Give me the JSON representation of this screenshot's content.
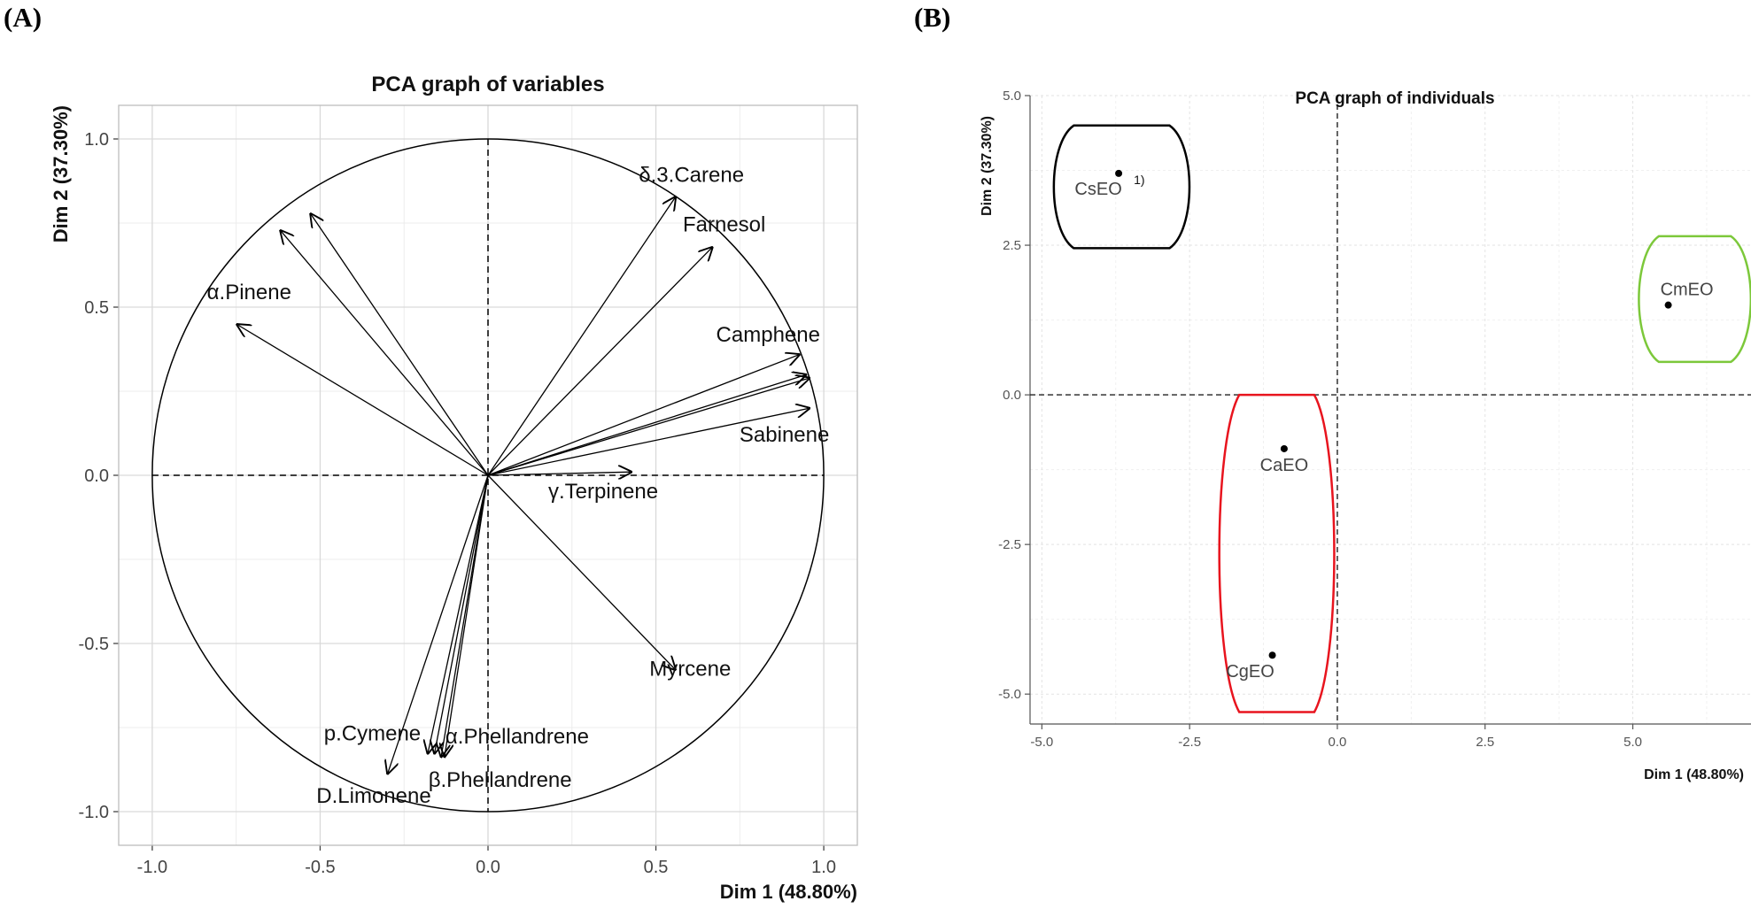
{
  "panel_labels": {
    "a": "(A)",
    "b": "(B)"
  },
  "chart_data": [
    {
      "type": "scatter",
      "subtype": "pca-variables-correlation-circle",
      "title": "PCA graph of variables",
      "xlabel": "Dim 1 (48.80%)",
      "ylabel": "Dim 2 (37.30%)",
      "xlim": [
        -1.1,
        1.1
      ],
      "ylim": [
        -1.1,
        1.1
      ],
      "xticks": [
        -1.0,
        -0.5,
        0.0,
        0.5,
        1.0
      ],
      "yticks": [
        -1.0,
        -0.5,
        0.0,
        0.5,
        1.0
      ],
      "x_tick_labels": [
        "-1.0",
        "-0.5",
        "0.0",
        "0.5",
        "1.0"
      ],
      "y_tick_labels": [
        "-1.0",
        "-0.5",
        "0.0",
        "0.5",
        "1.0"
      ],
      "grid": true,
      "unit_circle": true,
      "variables": [
        {
          "name": "δ.3.Carene",
          "x": 0.56,
          "y": 0.83
        },
        {
          "name": "Farnesol",
          "x": 0.67,
          "y": 0.68
        },
        {
          "name": "Camphene",
          "x": 0.93,
          "y": 0.36
        },
        {
          "name": "",
          "x": 0.95,
          "y": 0.3
        },
        {
          "name": "",
          "x": 0.96,
          "y": 0.29
        },
        {
          "name": "Sabinene",
          "x": 0.96,
          "y": 0.2
        },
        {
          "name": "γ.Terpinene",
          "x": 0.43,
          "y": 0.01
        },
        {
          "name": "Myrcene",
          "x": 0.56,
          "y": -0.58
        },
        {
          "name": "α.Pinene",
          "x": -0.75,
          "y": 0.45
        },
        {
          "name": "",
          "x": -0.62,
          "y": 0.73
        },
        {
          "name": "",
          "x": -0.53,
          "y": 0.78
        },
        {
          "name": "p.Cymene",
          "x": -0.18,
          "y": -0.83
        },
        {
          "name": "",
          "x": -0.16,
          "y": -0.83
        },
        {
          "name": "α.Phellandrene",
          "x": -0.14,
          "y": -0.84
        },
        {
          "name": "β.Phellandrene",
          "x": -0.13,
          "y": -0.84
        },
        {
          "name": "D.Limonene",
          "x": -0.3,
          "y": -0.89
        }
      ]
    },
    {
      "type": "scatter",
      "subtype": "pca-individuals",
      "title": "PCA graph of individuals",
      "xlabel": "Dim 1 (48.80%)",
      "ylabel": "Dim 2 (37.30%)",
      "xlim": [
        -5.2,
        7.0
      ],
      "ylim": [
        -5.5,
        5.0
      ],
      "xticks": [
        -5.0,
        -2.5,
        0.0,
        2.5,
        5.0
      ],
      "yticks": [
        -5.0,
        -2.5,
        0.0,
        2.5,
        5.0
      ],
      "x_tick_labels": [
        "-5.0",
        "-2.5",
        "0.0",
        "2.5",
        "5.0"
      ],
      "y_tick_labels": [
        "-5.0",
        "-2.5",
        "0.0",
        "2.5",
        "5.0"
      ],
      "grid": true,
      "points": [
        {
          "name": "CsEO",
          "x": -3.7,
          "y": 3.7,
          "superscript": "1)"
        },
        {
          "name": "CmEO",
          "x": 5.6,
          "y": 1.5,
          "superscript": ""
        },
        {
          "name": "CaEO",
          "x": -0.9,
          "y": -0.9,
          "superscript": ""
        },
        {
          "name": "CgEO",
          "x": -1.1,
          "y": -4.35,
          "superscript": ""
        }
      ],
      "groups": [
        {
          "name": "CsEO-group",
          "color": "#000000",
          "x_range": [
            -4.7,
            -2.6
          ],
          "y_range": [
            2.45,
            4.5
          ]
        },
        {
          "name": "CmEO-group",
          "color": "#7cc83a",
          "x_range": [
            5.2,
            6.9
          ],
          "y_range": [
            0.55,
            2.65
          ]
        },
        {
          "name": "CaEO-CgEO-group",
          "color": "#e8141e",
          "x_range": [
            -1.9,
            -0.15
          ],
          "y_range": [
            -5.3,
            0.0
          ]
        }
      ]
    }
  ]
}
